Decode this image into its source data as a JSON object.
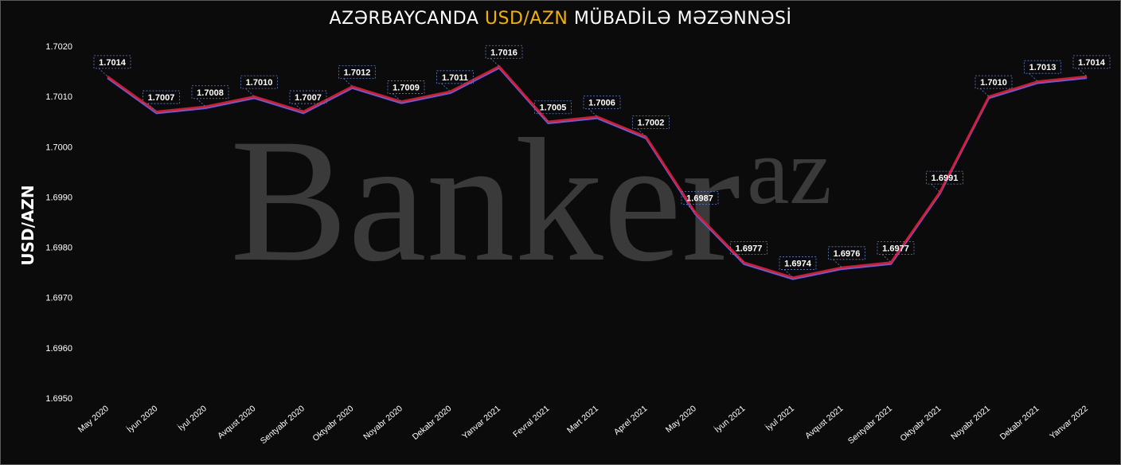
{
  "title": {
    "part1": "AZƏRBAYCANDA ",
    "highlight": "USD/AZN",
    "part2": " MÜBADİLƏ MƏZƏNNƏSİ"
  },
  "watermark": {
    "main": "Banker",
    "sup": "az"
  },
  "colors": {
    "background": "#0b0b0b",
    "line_main": "#e8102b",
    "line_shadow": "#4a6ad8",
    "label_border": "#5b7fd6",
    "highlight": "#f5b100"
  },
  "chart_data": {
    "type": "line",
    "title": "AZƏRBAYCANDA USD/AZN MÜBADİLƏ MƏZƏNNƏSİ",
    "xlabel": "",
    "ylabel": "USD/AZN",
    "ylim": [
      1.695,
      1.702
    ],
    "yticks": [
      "1.6950",
      "1.6960",
      "1.6970",
      "1.6980",
      "1.6990",
      "1.7000",
      "1.7010",
      "1.7020"
    ],
    "grid": false,
    "categories": [
      "May 2020",
      "İyun 2020",
      "İyul 2020",
      "Avqust 2020",
      "Sentyabr 2020",
      "Oktyabr 2020",
      "Noyabr 2020",
      "Dekabr 2020",
      "Yanvar 2021",
      "Fevral 2021",
      "Mart 2021",
      "Aprel 2021",
      "May 2020",
      "İyun 2021",
      "İyul 2021",
      "Avqust 2021",
      "Sentyabr 2021",
      "Oktyabr 2021",
      "Noyabr 2021",
      "Dekabr 2021",
      "Yanvar 2022"
    ],
    "values": [
      1.7014,
      1.7007,
      1.7008,
      1.701,
      1.7007,
      1.7012,
      1.7009,
      1.7011,
      1.7016,
      1.7005,
      1.7006,
      1.7002,
      1.6987,
      1.6977,
      1.6974,
      1.6976,
      1.6977,
      1.6991,
      1.701,
      1.7013,
      1.7014
    ],
    "labels": [
      "1.7014",
      "1.7007",
      "1.7008",
      "1.7010",
      "1.7007",
      "1.7012",
      "1.7009",
      "1.7011",
      "1.7016",
      "1.7005",
      "1.7006",
      "1.7002",
      "1.6987",
      "1.6977",
      "1.6974",
      "1.6976",
      "1.6977",
      "1.6991",
      "1.7010",
      "1.7013",
      "1.7014"
    ]
  }
}
